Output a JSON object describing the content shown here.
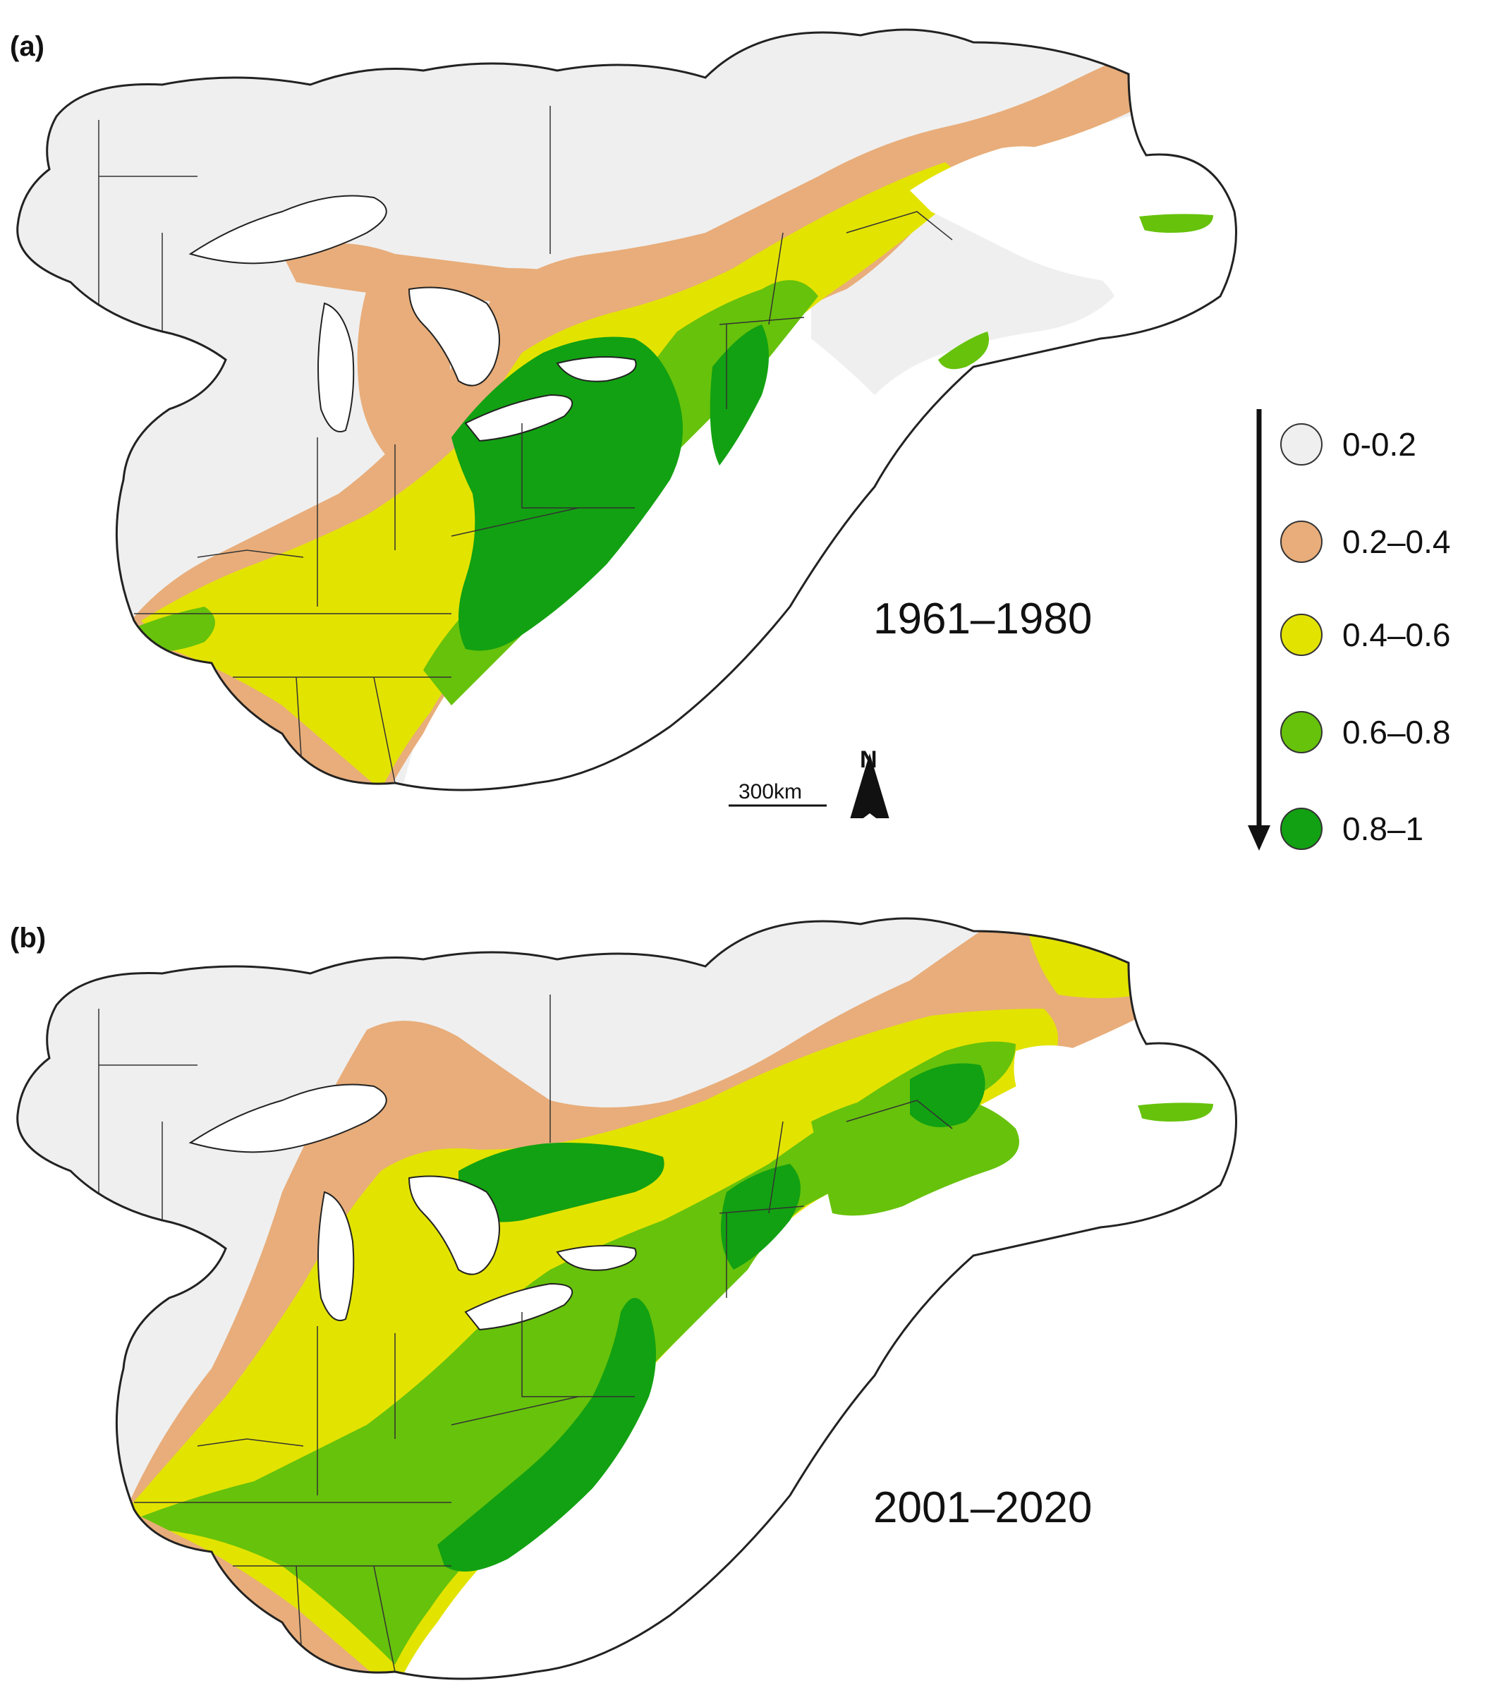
{
  "panels": [
    {
      "label": "(a)",
      "period": "1961–1980"
    },
    {
      "label": "(b)",
      "period": "2001–2020"
    }
  ],
  "legend": {
    "items": [
      {
        "label": "0-0.2",
        "color": "#efefef"
      },
      {
        "label": "0.2–0.4",
        "color": "#e8ad7a"
      },
      {
        "label": "0.4–0.6",
        "color": "#e3e300"
      },
      {
        "label": "0.6–0.8",
        "color": "#67c20b"
      },
      {
        "label": "0.8–1",
        "color": "#12a112"
      }
    ]
  },
  "scalebar": {
    "label": "300km"
  },
  "north_arrow": {
    "label": "N"
  },
  "colors": {
    "outline": "#222222",
    "state_lines": "#333333",
    "water": "#ffffff"
  }
}
